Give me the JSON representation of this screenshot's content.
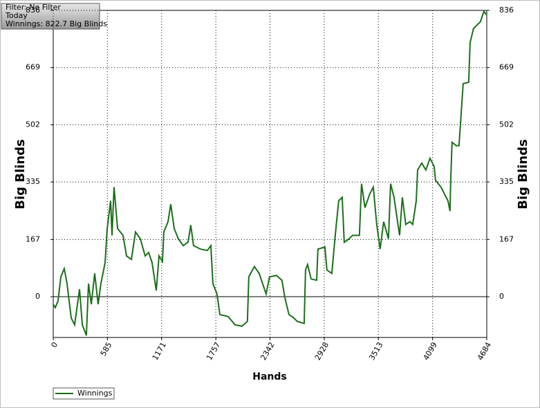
{
  "chart_data": {
    "type": "line",
    "info": [
      "Filter: No Filter",
      "Today",
      "Winnings: 822.7 Big Blinds"
    ],
    "xlabel": "Hands",
    "ylabel": "Big Blinds",
    "y2label": "Big Blinds",
    "xlim": [
      0,
      4684
    ],
    "ylim": [
      -119,
      836
    ],
    "y2lim": [
      -119,
      836
    ],
    "xticks": [
      0,
      585,
      1171,
      1757,
      2342,
      2928,
      3513,
      4099,
      4684
    ],
    "yticks": [
      0,
      167,
      335,
      502,
      669,
      836
    ],
    "y2ticks": [
      0,
      167,
      335,
      502,
      669,
      836
    ],
    "grid": true,
    "legend": "bottom-left",
    "x": [
      0,
      22,
      52,
      82,
      119,
      149,
      194,
      231,
      284,
      314,
      358,
      381,
      411,
      448,
      485,
      515,
      560,
      583,
      620,
      635,
      657,
      695,
      754,
      792,
      844,
      889,
      941,
      993,
      1031,
      1068,
      1113,
      1143,
      1180,
      1195,
      1240,
      1270,
      1307,
      1352,
      1404,
      1456,
      1486,
      1516,
      1591,
      1665,
      1703,
      1725,
      1770,
      1800,
      1890,
      1964,
      2039,
      2098,
      2113,
      2173,
      2225,
      2300,
      2337,
      2412,
      2471,
      2502,
      2547,
      2599,
      2636,
      2711,
      2726,
      2748,
      2786,
      2846,
      2860,
      2935,
      2957,
      3010,
      3047,
      3084,
      3122,
      3144,
      3196,
      3234,
      3308,
      3331,
      3368,
      3420,
      3458,
      3495,
      3532,
      3570,
      3622,
      3645,
      3682,
      3742,
      3772,
      3809,
      3854,
      3884,
      3922,
      3937,
      3981,
      4026,
      4071,
      4116,
      4130,
      4190,
      4227,
      4265,
      4287,
      4294,
      4309,
      4354,
      4384,
      4414,
      4429,
      4489,
      4504,
      4541,
      4616,
      4653,
      4684
    ],
    "series": [
      {
        "name": "Winnings",
        "color": "#1a6e1a",
        "values": [
          -22,
          -32,
          -12,
          58,
          82,
          38,
          -62,
          -82,
          22,
          -82,
          -113,
          38,
          -22,
          68,
          -22,
          38,
          99,
          199,
          280,
          179,
          320,
          199,
          179,
          119,
          109,
          189,
          169,
          119,
          129,
          99,
          18,
          119,
          103,
          189,
          219,
          270,
          199,
          169,
          149,
          159,
          209,
          149,
          139,
          135,
          149,
          38,
          8,
          -52,
          -58,
          -82,
          -86,
          -72,
          58,
          88,
          68,
          8,
          58,
          62,
          48,
          -2,
          -52,
          -62,
          -72,
          -78,
          78,
          94,
          52,
          48,
          139,
          145,
          78,
          68,
          179,
          280,
          290,
          159,
          169,
          179,
          179,
          330,
          260,
          300,
          320,
          211,
          139,
          219,
          169,
          330,
          290,
          179,
          290,
          211,
          219,
          211,
          280,
          370,
          390,
          370,
          404,
          380,
          340,
          320,
          300,
          280,
          250,
          336,
          451,
          441,
          441,
          561,
          622,
          626,
          742,
          783,
          803,
          833,
          822.7
        ]
      }
    ]
  }
}
